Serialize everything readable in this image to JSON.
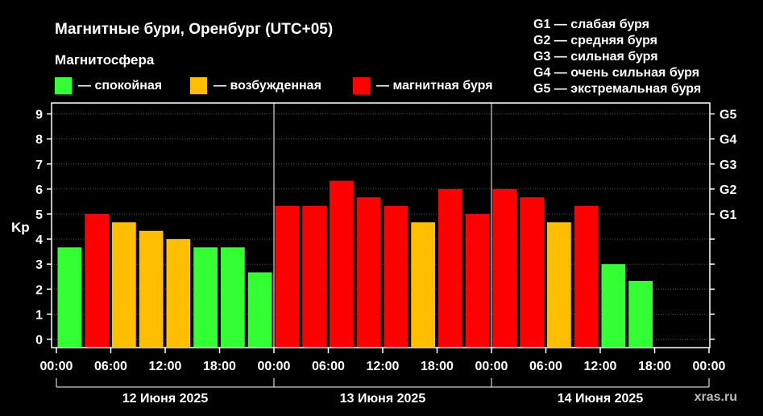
{
  "chart_data": {
    "type": "bar",
    "title": "Магнитные бури, Оренбург (UTC+05)",
    "legend_title": "Магнитосфера",
    "legend": [
      {
        "label": "— спокойная",
        "color": "#33ff33"
      },
      {
        "label": "— возбужденная",
        "color": "#ffbf00"
      },
      {
        "label": "— магнитная буря",
        "color": "#ff0000"
      }
    ],
    "g_scale": [
      {
        "level": "G1",
        "label": "G1 — слабая буря",
        "kp": 5
      },
      {
        "level": "G2",
        "label": "G2 — средняя буря",
        "kp": 6
      },
      {
        "level": "G3",
        "label": "G3 — сильная буря",
        "kp": 7
      },
      {
        "level": "G4",
        "label": "G4 — очень сильная буря",
        "kp": 8
      },
      {
        "level": "G5",
        "label": "G5 — экстремальная буря",
        "kp": 9
      }
    ],
    "ylabel": "Kp",
    "ylim": [
      0,
      9
    ],
    "y_ticks": [
      "0",
      "1",
      "2",
      "3",
      "4",
      "5",
      "6",
      "7",
      "8",
      "9"
    ],
    "x_ticks": [
      "00:00",
      "06:00",
      "12:00",
      "18:00",
      "00:00",
      "06:00",
      "12:00",
      "18:00",
      "00:00",
      "06:00",
      "12:00",
      "18:00",
      "00:00"
    ],
    "days": [
      "12 Июня 2025",
      "13 Июня 2025",
      "14 Июня 2025"
    ],
    "values": [
      3.67,
      5.0,
      4.67,
      4.33,
      4.0,
      3.67,
      3.67,
      2.67,
      5.33,
      5.33,
      6.33,
      5.67,
      5.33,
      4.67,
      6.0,
      5.0,
      6.0,
      5.67,
      4.67,
      5.33,
      3.0,
      2.33
    ],
    "bar_colors": [
      "#33ff33",
      "#ff0000",
      "#ffbf00",
      "#ffbf00",
      "#ffbf00",
      "#33ff33",
      "#33ff33",
      "#33ff33",
      "#ff0000",
      "#ff0000",
      "#ff0000",
      "#ff0000",
      "#ff0000",
      "#ffbf00",
      "#ff0000",
      "#ff0000",
      "#ff0000",
      "#ff0000",
      "#ffbf00",
      "#ff0000",
      "#33ff33",
      "#33ff33"
    ],
    "grid": true
  },
  "watermark": "xras.ru"
}
